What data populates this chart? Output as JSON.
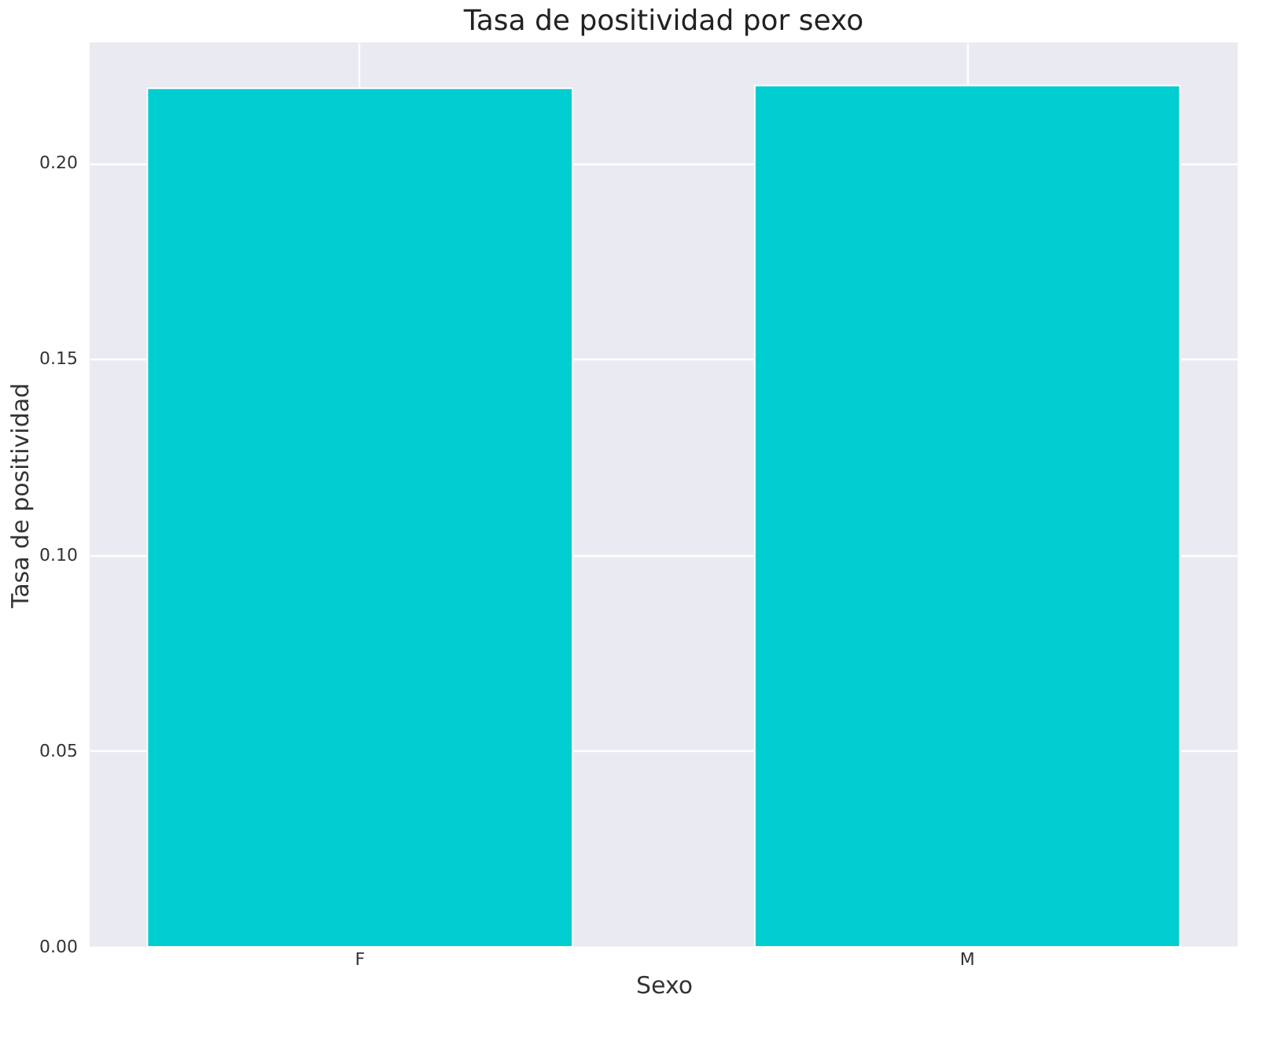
{
  "chart_data": {
    "type": "bar",
    "title": "Tasa de positividad por sexo",
    "xlabel": "Sexo",
    "ylabel": "Tasa de positividad",
    "categories": [
      "F",
      "M"
    ],
    "values": [
      0.219,
      0.2197
    ],
    "color": "#00ced1",
    "ylim": [
      0,
      0.2307
    ],
    "yticks": [
      {
        "value": 0,
        "label": "0.00"
      },
      0.05,
      {
        "value": 0.1,
        "label": "0.10"
      },
      0.15,
      {
        "value": 0.2,
        "label": "0.20"
      }
    ],
    "grid": true
  }
}
